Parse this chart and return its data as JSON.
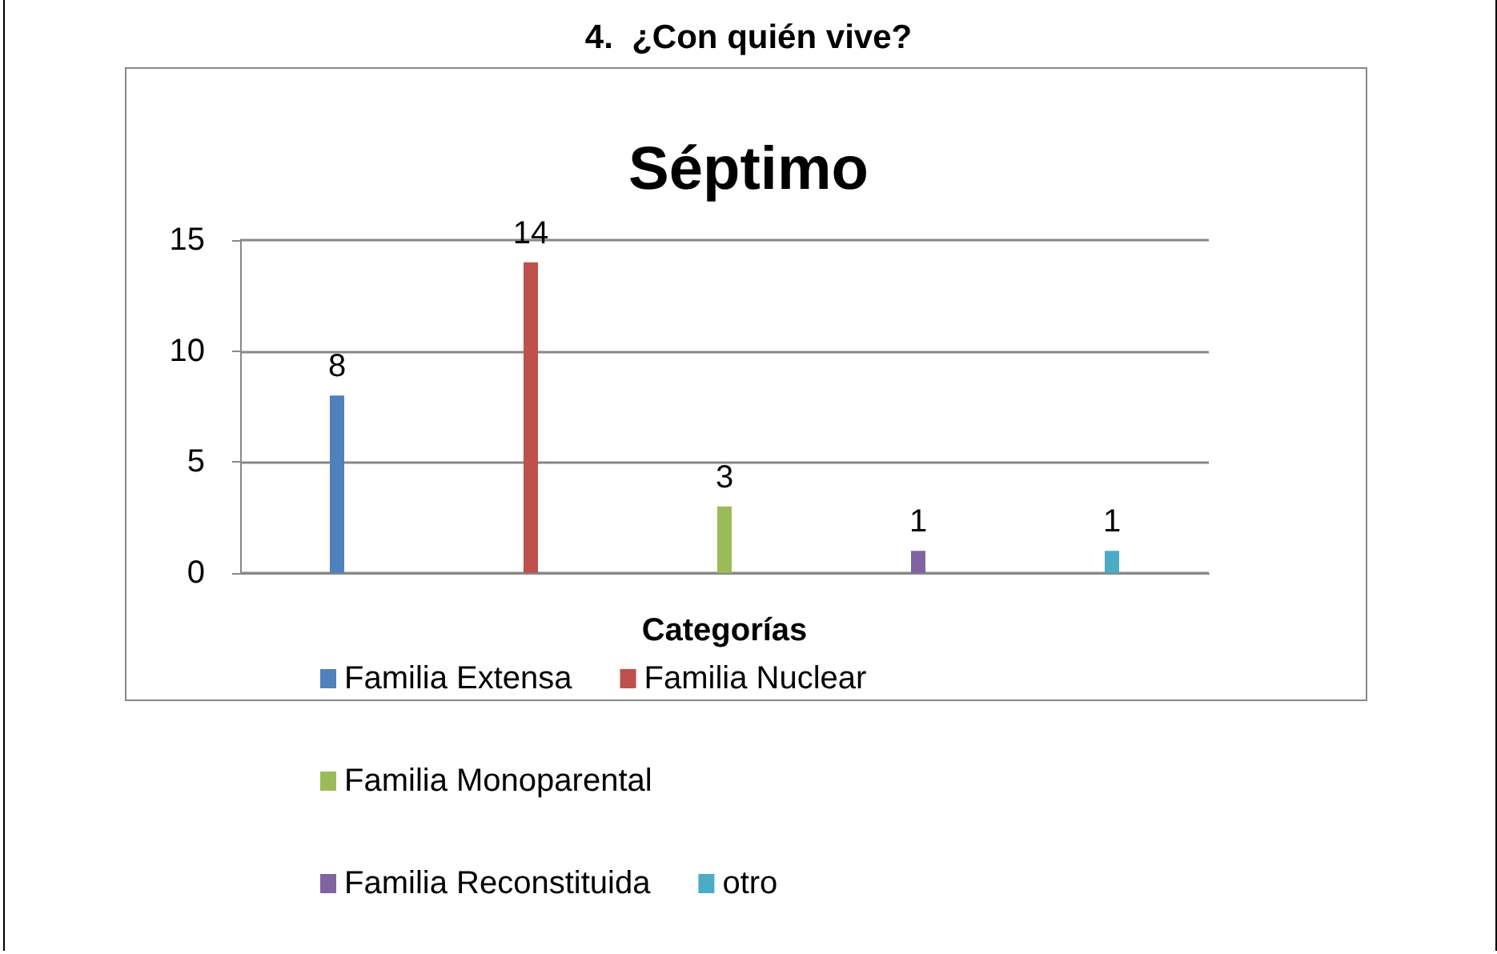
{
  "chart_data": {
    "type": "bar",
    "title": "4.  ¿Con quién vive?",
    "subtitle": "Séptimo",
    "xlabel": "Categorías",
    "categories": [
      null,
      null,
      null,
      null,
      null
    ],
    "series": [
      {
        "name": "Familia Extensa",
        "color": "#4f81bd",
        "values": [
          8,
          null,
          null,
          null,
          null
        ]
      },
      {
        "name": "Familia Nuclear",
        "color": "#c0504d",
        "values": [
          null,
          14,
          null,
          null,
          null
        ]
      },
      {
        "name": "Familia Monoparental",
        "color": "#9bbb59",
        "values": [
          null,
          null,
          3,
          null,
          null
        ]
      },
      {
        "name": "Familia Reconstituida",
        "color": "#8064a2",
        "values": [
          null,
          null,
          null,
          1,
          null
        ]
      },
      {
        "name": "otro",
        "color": "#4bacc6",
        "values": [
          null,
          null,
          null,
          null,
          1
        ]
      }
    ],
    "ylim": [
      0,
      15
    ],
    "yticks": [
      0,
      5,
      10,
      15
    ],
    "grid": "y",
    "legend": "bottom",
    "data_labels": true
  }
}
